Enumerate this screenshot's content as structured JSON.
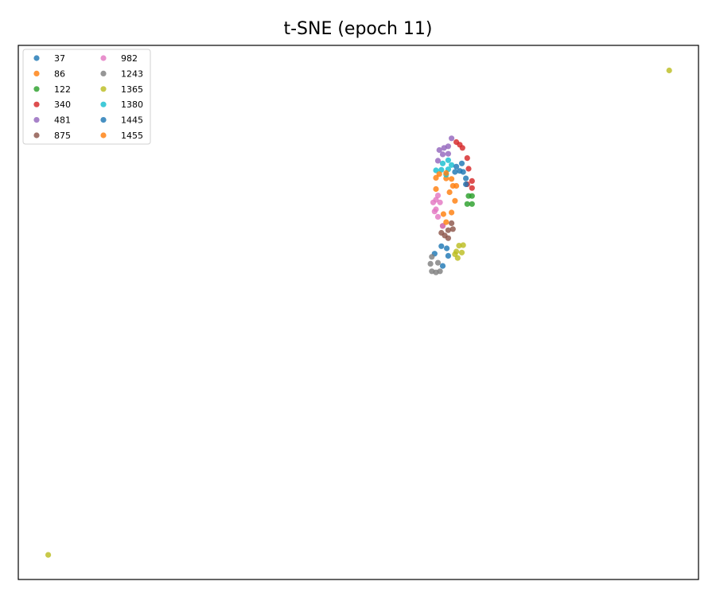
{
  "chart_data": {
    "type": "scatter",
    "title": "t-SNE (epoch 11)",
    "xlabel": "",
    "ylabel": "",
    "xlim": [
      0,
      100
    ],
    "ylim": [
      0,
      100
    ],
    "grid": false,
    "legend": {
      "position": "top-left",
      "columns": 2
    },
    "series": [
      {
        "name": "37",
        "color": "#1f77b4",
        "points": [
          [
            61.2,
            61.0
          ],
          [
            62.2,
            62.4
          ],
          [
            63.2,
            60.6
          ],
          [
            63.0,
            62.0
          ],
          [
            62.4,
            58.7
          ]
        ]
      },
      {
        "name": "86",
        "color": "#ff7f0e",
        "points": [
          [
            62.9,
            75.1
          ],
          [
            63.4,
            72.5
          ],
          [
            64.2,
            70.9
          ],
          [
            61.4,
            73.1
          ],
          [
            62.5,
            68.4
          ]
        ]
      },
      {
        "name": "122",
        "color": "#2ca02c",
        "points": [
          [
            66.2,
            71.8
          ],
          [
            66.7,
            70.3
          ],
          [
            66.0,
            70.3
          ],
          [
            66.7,
            71.8
          ]
        ]
      },
      {
        "name": "340",
        "color": "#d62728",
        "points": [
          [
            64.4,
            81.9
          ],
          [
            64.9,
            81.4
          ],
          [
            65.3,
            80.8
          ],
          [
            66.0,
            78.9
          ],
          [
            66.2,
            76.9
          ],
          [
            66.7,
            74.6
          ],
          [
            66.7,
            73.3
          ],
          [
            66.0,
            74.0
          ]
        ]
      },
      {
        "name": "481",
        "color": "#9467bd",
        "points": [
          [
            63.7,
            82.6
          ],
          [
            63.2,
            81.1
          ],
          [
            62.6,
            80.8
          ],
          [
            61.9,
            80.4
          ],
          [
            62.4,
            79.6
          ],
          [
            61.7,
            78.4
          ],
          [
            63.2,
            79.7
          ]
        ]
      },
      {
        "name": "875",
        "color": "#8c564b",
        "points": [
          [
            63.7,
            66.7
          ],
          [
            63.9,
            65.6
          ],
          [
            63.2,
            65.4
          ],
          [
            62.7,
            64.4
          ],
          [
            62.2,
            64.9
          ],
          [
            63.2,
            63.9
          ],
          [
            62.4,
            66.2
          ]
        ]
      },
      {
        "name": "982",
        "color": "#e377c2",
        "points": [
          [
            61.7,
            71.9
          ],
          [
            61.4,
            71.1
          ],
          [
            61.0,
            70.6
          ],
          [
            62.0,
            70.6
          ],
          [
            61.4,
            69.3
          ],
          [
            61.2,
            68.9
          ],
          [
            61.7,
            67.9
          ],
          [
            62.4,
            66.2
          ]
        ]
      },
      {
        "name": "1243",
        "color": "#7f7f7f",
        "points": [
          [
            60.8,
            60.4
          ],
          [
            60.6,
            59.1
          ],
          [
            61.7,
            59.3
          ],
          [
            60.8,
            57.7
          ],
          [
            61.4,
            57.5
          ],
          [
            62.0,
            57.7
          ]
        ]
      },
      {
        "name": "1365",
        "color": "#bcbd22",
        "points": [
          [
            95.7,
            95.3
          ],
          [
            4.4,
            4.6
          ],
          [
            64.8,
            62.5
          ],
          [
            65.4,
            62.6
          ],
          [
            64.4,
            61.4
          ],
          [
            65.2,
            61.2
          ],
          [
            64.2,
            60.9
          ],
          [
            64.6,
            60.2
          ]
        ]
      },
      {
        "name": "1380",
        "color": "#17becf",
        "points": [
          [
            63.2,
            78.5
          ],
          [
            62.4,
            77.9
          ],
          [
            62.2,
            76.7
          ],
          [
            61.4,
            76.6
          ],
          [
            63.2,
            76.8
          ],
          [
            63.7,
            77.6
          ],
          [
            62.9,
            75.8
          ]
        ]
      },
      {
        "name": "1445",
        "color": "#1f77b4",
        "points": [
          [
            64.4,
            77.3
          ],
          [
            65.2,
            77.9
          ],
          [
            64.9,
            76.5
          ],
          [
            64.2,
            76.3
          ],
          [
            65.4,
            76.3
          ],
          [
            65.8,
            75.1
          ],
          [
            65.8,
            74.0
          ]
        ]
      },
      {
        "name": "1455",
        "color": "#ff7f0e",
        "points": [
          [
            61.9,
            75.9
          ],
          [
            62.9,
            76.1
          ],
          [
            63.7,
            75.0
          ],
          [
            61.4,
            75.2
          ],
          [
            64.4,
            73.7
          ],
          [
            63.9,
            73.7
          ],
          [
            62.9,
            66.9
          ],
          [
            63.7,
            68.7
          ]
        ]
      }
    ]
  }
}
